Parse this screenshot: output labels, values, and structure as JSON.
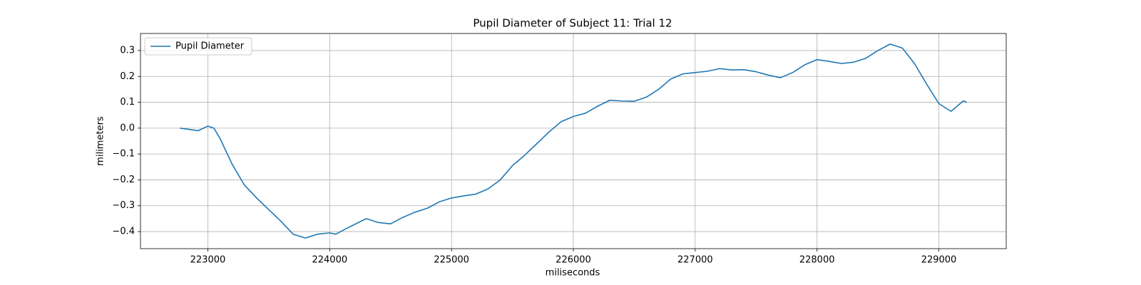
{
  "chart_data": {
    "type": "line",
    "title": "Pupil Diameter of Subject 11: Trial 12",
    "x_label": "miliseconds",
    "y_label": "milimeters",
    "grid": true,
    "legend": "upper left",
    "xlim": [
      222447,
      229553
    ],
    "ylim": [
      -0.466,
      0.366
    ],
    "xticks": [
      223000,
      224000,
      225000,
      226000,
      227000,
      228000,
      229000
    ],
    "yticks": [
      {
        "value": -0.4,
        "label": "−0.4"
      },
      {
        "value": -0.3,
        "label": "−0.3"
      },
      {
        "value": -0.2,
        "label": "−0.2"
      },
      {
        "value": -0.1,
        "label": "−0.1"
      },
      {
        "value": 0,
        "label": "0.0"
      },
      0.1,
      0.2,
      0.3
    ],
    "x": [
      222770,
      222850,
      222920,
      223000,
      223050,
      223100,
      223200,
      223300,
      223400,
      223500,
      223600,
      223700,
      223800,
      223900,
      224000,
      224050,
      224150,
      224300,
      224400,
      224500,
      224600,
      224700,
      224800,
      224900,
      225000,
      225100,
      225200,
      225300,
      225400,
      225500,
      225600,
      225700,
      225800,
      225900,
      226000,
      226100,
      226200,
      226300,
      226400,
      226500,
      226600,
      226700,
      226800,
      226900,
      227000,
      227100,
      227200,
      227300,
      227400,
      227500,
      227600,
      227700,
      227800,
      227900,
      228000,
      228100,
      228200,
      228300,
      228400,
      228500,
      228600,
      228700,
      228800,
      228900,
      229000,
      229100,
      229200,
      229230
    ],
    "series": [
      {
        "name": "Pupil Diameter",
        "color": "#1f77b4",
        "values": [
          0.0,
          -0.005,
          -0.01,
          0.008,
          0.0,
          -0.04,
          -0.14,
          -0.22,
          -0.27,
          -0.315,
          -0.36,
          -0.41,
          -0.425,
          -0.41,
          -0.405,
          -0.41,
          -0.385,
          -0.35,
          -0.365,
          -0.37,
          -0.345,
          -0.325,
          -0.31,
          -0.285,
          -0.27,
          -0.262,
          -0.255,
          -0.235,
          -0.2,
          -0.145,
          -0.105,
          -0.06,
          -0.015,
          0.025,
          0.045,
          0.058,
          0.085,
          0.108,
          0.105,
          0.104,
          0.12,
          0.15,
          0.19,
          0.21,
          0.215,
          0.22,
          0.23,
          0.225,
          0.226,
          0.218,
          0.205,
          0.195,
          0.215,
          0.245,
          0.265,
          0.258,
          0.25,
          0.255,
          0.27,
          0.3,
          0.325,
          0.31,
          0.25,
          0.17,
          0.095,
          0.065,
          0.105,
          0.1
        ]
      }
    ]
  }
}
